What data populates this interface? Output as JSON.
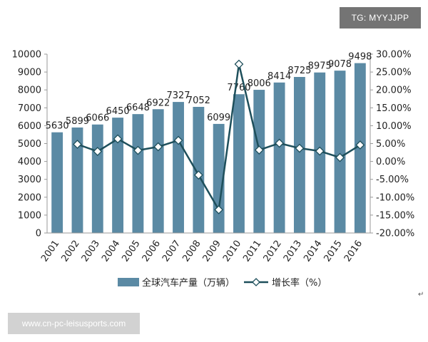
{
  "badges": {
    "top_right": "TG: MYYJJPP",
    "bottom_left": "www.cn-pc-leisusports.com"
  },
  "colors": {
    "bar": "#5b8aa4",
    "line": "#1e4f5b",
    "marker_fill": "#ffffff",
    "axis": "#999999",
    "text": "#222222"
  },
  "chart_data": {
    "type": "bar",
    "categories": [
      "2001",
      "2002",
      "2003",
      "2004",
      "2005",
      "2006",
      "2007",
      "2008",
      "2009",
      "2010",
      "2011",
      "2012",
      "2013",
      "2014",
      "2015",
      "2016"
    ],
    "left_axis": {
      "min": 0,
      "max": 10000,
      "step": 1000,
      "tick_labels": [
        "0",
        "1000",
        "2000",
        "3000",
        "4000",
        "5000",
        "6000",
        "7000",
        "8000",
        "9000",
        "10000"
      ]
    },
    "right_axis": {
      "min": -20,
      "max": 30,
      "step": 5,
      "tick_labels": [
        "-20.00%",
        "-15.00%",
        "-10.00%",
        "-5.00%",
        "0.00%",
        "5.00%",
        "10.00%",
        "15.00%",
        "20.00%",
        "25.00%",
        "30.00%"
      ]
    },
    "series": [
      {
        "name": "全球汽车产量（万辆）",
        "type": "bar",
        "axis": "left",
        "values": [
          5630,
          5899,
          6066,
          6450,
          6648,
          6922,
          7327,
          7052,
          6099,
          7760,
          8006,
          8414,
          8725,
          8975,
          9078,
          9498
        ],
        "labels": [
          "5630",
          "5899",
          "6066",
          "6450",
          "6648",
          "6922",
          "7327",
          "7052",
          "6099",
          "7760",
          "8006",
          "8414",
          "8725",
          "8975",
          "9078",
          "9498"
        ]
      },
      {
        "name": "增长率（%）",
        "type": "line",
        "axis": "right",
        "values": [
          null,
          4.8,
          2.8,
          6.3,
          3.1,
          4.1,
          5.9,
          -3.8,
          -13.5,
          27.2,
          3.2,
          5.1,
          3.7,
          2.9,
          1.1,
          4.6
        ]
      }
    ],
    "legend": {
      "position": "bottom"
    },
    "grid": false
  },
  "corner_mark": "↵"
}
